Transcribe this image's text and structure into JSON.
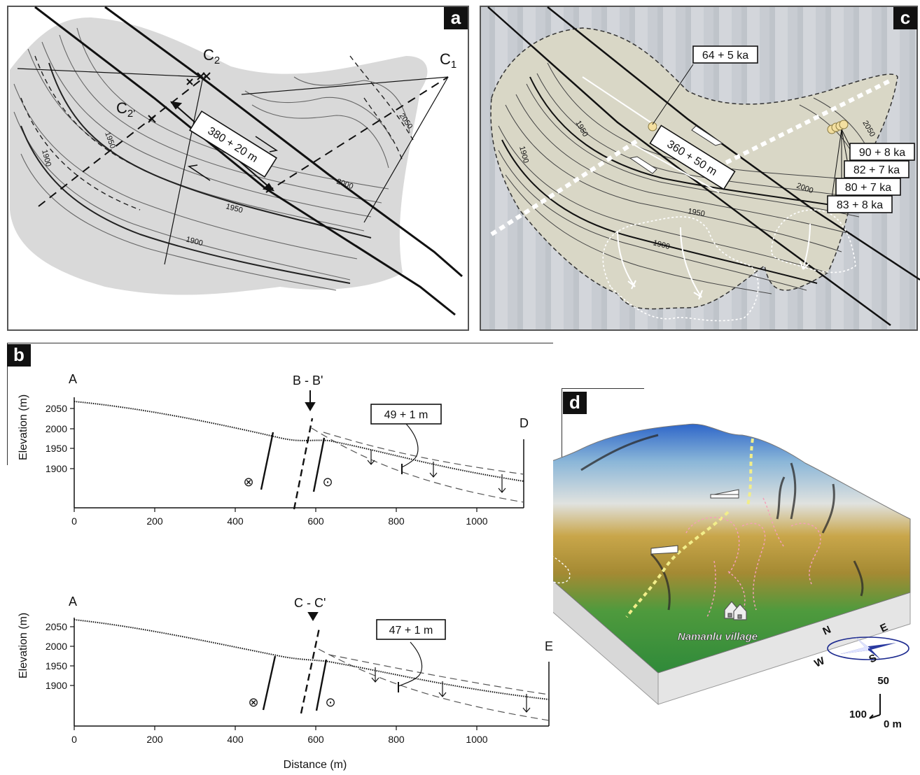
{
  "panel_a": {
    "tag": "a",
    "labels": {
      "c1": "C",
      "c1_sub": "1",
      "c2": "C",
      "c2_sub": "2",
      "c2p": "C",
      "c2p_sub": "2'",
      "offset": "380 + 20 m"
    },
    "contours": [
      "1950",
      "1900",
      "2050",
      "2000",
      "1950",
      "1900"
    ]
  },
  "panel_c": {
    "tag": "c",
    "offset": "360 + 50 m",
    "ages": [
      "64 + 5 ka",
      "90 + 8 ka",
      "82 + 7 ka",
      "80 + 7 ka",
      "83 + 8 ka"
    ],
    "contours": [
      "1950",
      "1900",
      "2050",
      "2000",
      "1950",
      "1900"
    ]
  },
  "panel_b": {
    "tag": "b",
    "profile1": {
      "start": "A",
      "end": "D",
      "section": "B - B'",
      "offset": "49 + 1 m",
      "ylabel": "Elevation (m)",
      "yticks": [
        "2050",
        "2000",
        "1950",
        "1900"
      ],
      "xticks": [
        "0",
        "200",
        "400",
        "600",
        "800",
        "1000"
      ]
    },
    "profile2": {
      "start": "A",
      "end": "E",
      "section": "C - C'",
      "offset": "47 + 1 m",
      "ylabel": "Elevation (m)",
      "yticks": [
        "2050",
        "2000",
        "1950",
        "1900"
      ],
      "xticks": [
        "0",
        "200",
        "400",
        "600",
        "800",
        "1000"
      ]
    },
    "xlabel": "Distance (m)",
    "symbols": {
      "into": "⊗",
      "out": "⊙"
    }
  },
  "panel_d": {
    "tag": "d",
    "village": "Namanlu village",
    "compass": {
      "n": "N",
      "e": "E",
      "s": "S",
      "w": "W"
    },
    "scale": {
      "vertical": "50",
      "horizontal": "100",
      "origin": "0 m"
    }
  }
}
